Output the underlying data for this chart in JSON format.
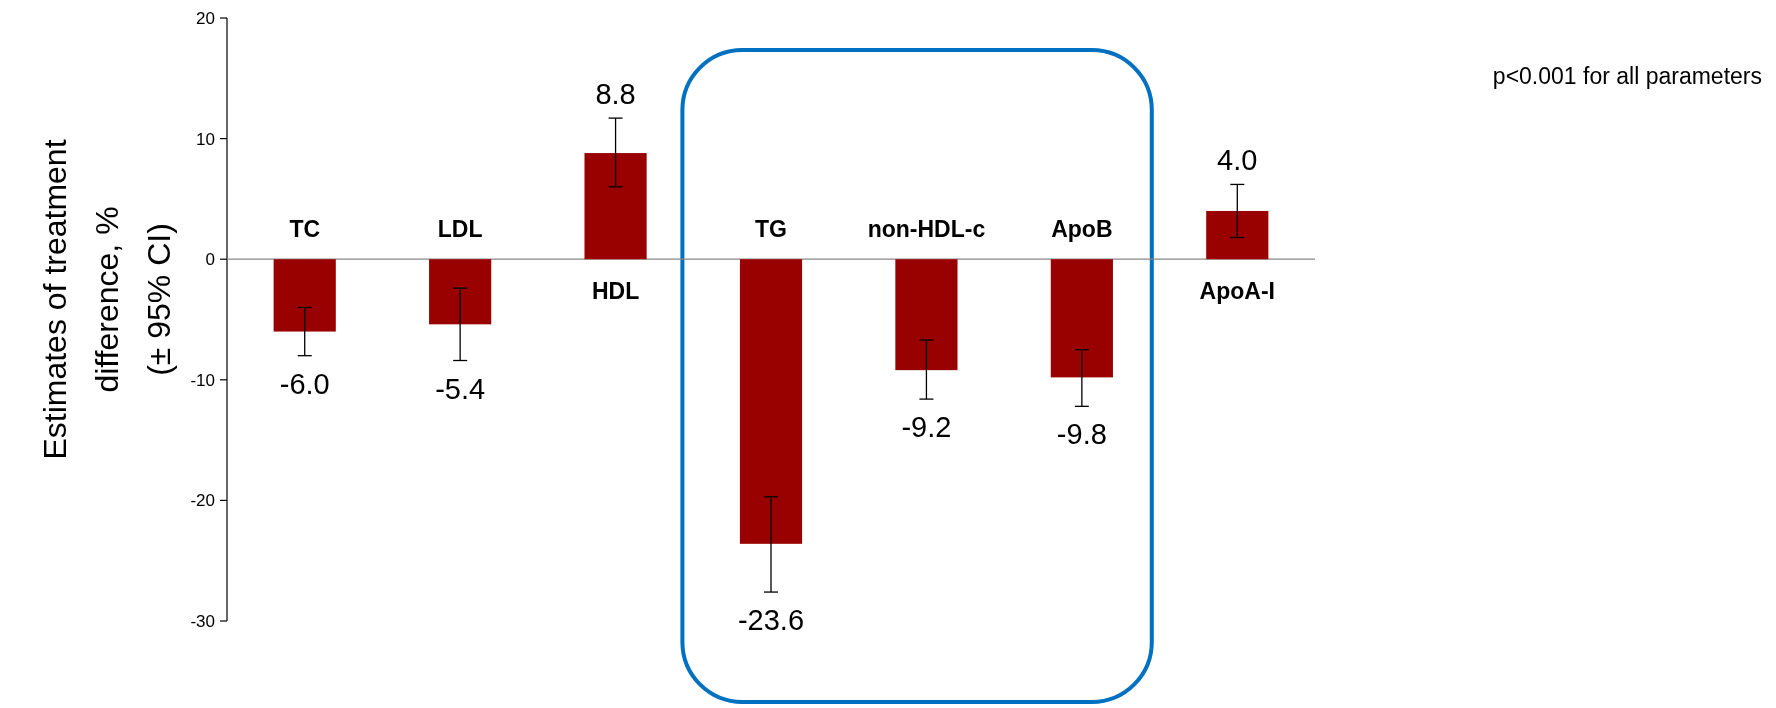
{
  "chart_data": {
    "type": "bar",
    "ylabel": "Estimates of treatment difference, % (± 95% CI)",
    "categories": [
      "TC",
      "LDL",
      "HDL",
      "TG",
      "non-HDL-c",
      "ApoB",
      "ApoA-I"
    ],
    "values": [
      -6.0,
      -5.4,
      8.8,
      -23.6,
      -9.2,
      -9.8,
      4.0
    ],
    "errors": [
      [
        -8.0,
        -4.0
      ],
      [
        -8.4,
        -2.4
      ],
      [
        6.0,
        11.7
      ],
      [
        -27.6,
        -19.7
      ],
      [
        -11.6,
        -6.7
      ],
      [
        -12.2,
        -7.5
      ],
      [
        1.8,
        6.2
      ]
    ],
    "value_labels": [
      "-6.0",
      "-5.4",
      "8.8",
      "-23.6",
      "-9.2",
      "-9.8",
      "4.0"
    ],
    "color": "#990000",
    "ylim": [
      -30,
      20
    ],
    "yticks": [
      -30,
      -20,
      -10,
      0,
      10,
      20
    ],
    "grid": false,
    "annotations": [
      "p<0.001 for all parameters"
    ]
  }
}
